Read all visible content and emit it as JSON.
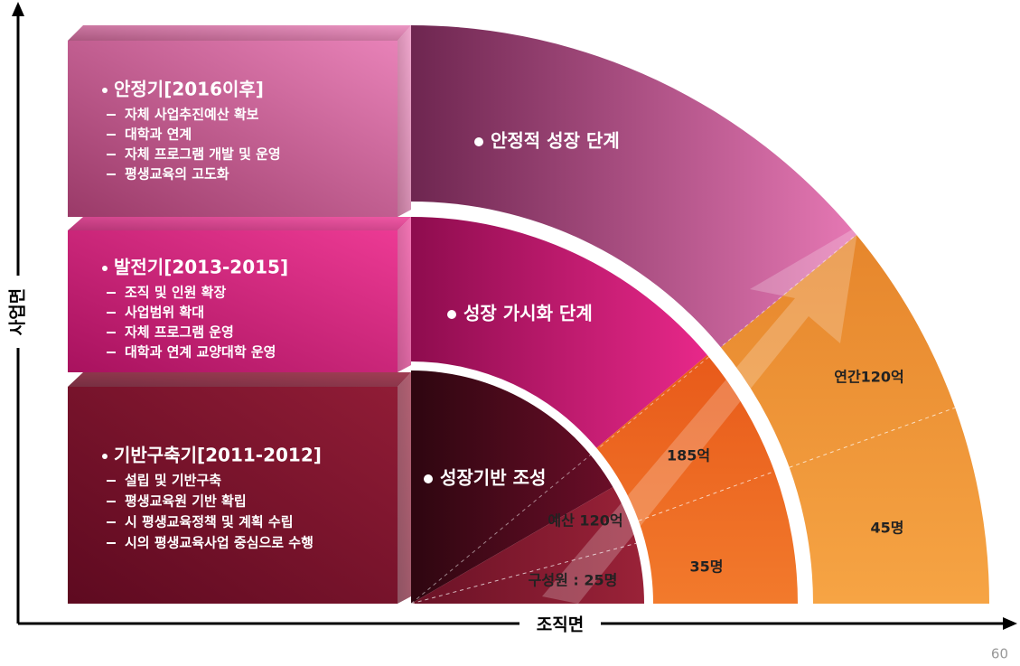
{
  "axes": {
    "y_label": "사업면",
    "x_label": "조직면"
  },
  "stages": [
    {
      "title": "안정기[2016이후]",
      "items": [
        "자체 사업추진예산 확보",
        "대학과 연계",
        "자체 프로그램 개발 및 운영",
        "평생교육의 고도화"
      ]
    },
    {
      "title": "발전기[2013-2015]",
      "items": [
        "조직 및 인원 확장",
        "사업범위 확대",
        "자체 프로그램 운영",
        "대학과 연계 교양대학 운영"
      ]
    },
    {
      "title": "기반구축기[2011-2012]",
      "items": [
        "설립 및 기반구축",
        "평생교육원 기반 확립",
        "시 평생교육정책 및 계획 수립",
        "시의 평생교육사업 중심으로 수행"
      ]
    }
  ],
  "phases": [
    "안정적 성장 단계",
    "성장 가시화 단계",
    "성장기반 조성"
  ],
  "metrics": [
    {
      "budget": "예산 120억",
      "members": "구성원 : 25명"
    },
    {
      "budget": "185억",
      "members": "35명"
    },
    {
      "budget": "연간120억",
      "members": "45명"
    }
  ],
  "page_number": "60"
}
